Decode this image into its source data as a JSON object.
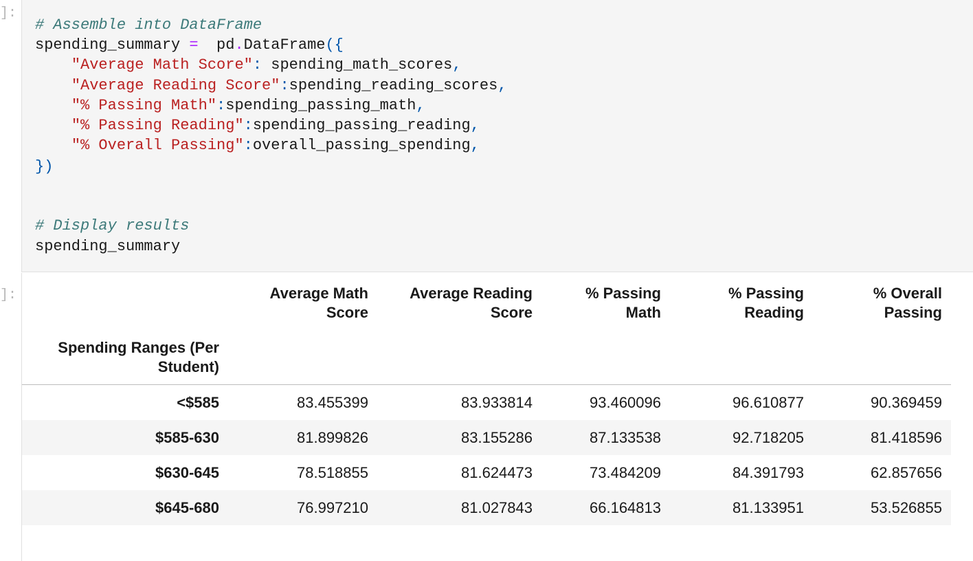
{
  "input_prompt": "]:",
  "output_prompt": "]:",
  "code": {
    "comment1": "# Assemble into DataFrame",
    "assign_name": "spending_summary",
    "assign_op": " =  ",
    "pd": "pd",
    "dot": ".",
    "ctor": "DataFrame",
    "open": "({",
    "lines": [
      {
        "key": "\"Average Math Score\"",
        "sep": ": ",
        "val": "spending_math_scores",
        "comma": ","
      },
      {
        "key": "\"Average Reading Score\"",
        "sep": ":",
        "val": "spending_reading_scores",
        "comma": ","
      },
      {
        "key": "\"% Passing Math\"",
        "sep": ":",
        "val": "spending_passing_math",
        "comma": ","
      },
      {
        "key": "\"% Passing Reading\"",
        "sep": ":",
        "val": "spending_passing_reading",
        "comma": ","
      },
      {
        "key": "\"% Overall Passing\"",
        "sep": ":",
        "val": "overall_passing_spending",
        "comma": ","
      }
    ],
    "close": "})",
    "comment2": "# Display results",
    "final": "spending_summary"
  },
  "table": {
    "columns": [
      [
        "Average Math",
        "Score"
      ],
      [
        "Average Reading",
        "Score"
      ],
      [
        "% Passing",
        "Math"
      ],
      [
        "% Passing",
        "Reading"
      ],
      [
        "% Overall",
        "Passing"
      ]
    ],
    "index_name": [
      "Spending Ranges (Per",
      "Student)"
    ],
    "rows": [
      {
        "label": "<$585",
        "values": [
          "83.455399",
          "83.933814",
          "93.460096",
          "96.610877",
          "90.369459"
        ]
      },
      {
        "label": "$585-630",
        "values": [
          "81.899826",
          "83.155286",
          "87.133538",
          "92.718205",
          "81.418596"
        ]
      },
      {
        "label": "$630-645",
        "values": [
          "78.518855",
          "81.624473",
          "73.484209",
          "84.391793",
          "62.857656"
        ]
      },
      {
        "label": "$645-680",
        "values": [
          "76.997210",
          "81.027843",
          "66.164813",
          "81.133951",
          "53.526855"
        ]
      }
    ]
  }
}
